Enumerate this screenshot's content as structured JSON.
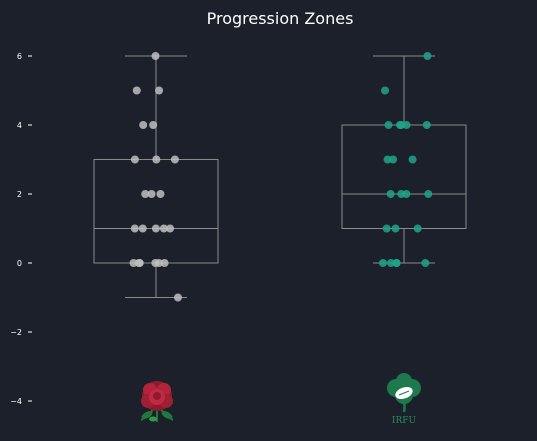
{
  "chart_data": {
    "type": "box",
    "title": "Progression Zones",
    "xlabel": "",
    "ylabel": "",
    "ylim": [
      -4.8,
      6.6
    ],
    "yticks": [
      6,
      4,
      2,
      0,
      -2,
      -4
    ],
    "ytick_labels": [
      "6",
      "4",
      "2",
      "0",
      "−2",
      "−4"
    ],
    "grid": false,
    "series": [
      {
        "team": "England",
        "color": "#c0c0c0",
        "box": {
          "min": -1,
          "q1": 0,
          "median": 1,
          "q3": 3,
          "max": 6
        },
        "points": [
          6,
          5,
          5,
          4,
          4,
          3,
          3,
          3,
          2,
          2,
          2,
          1,
          1,
          1,
          1,
          1,
          0,
          0,
          0,
          0,
          0,
          0,
          -1
        ]
      },
      {
        "team": "Ireland",
        "color": "#1fa58a",
        "box": {
          "min": 0,
          "q1": 1,
          "median": 2,
          "q3": 4,
          "max": 6
        },
        "points": [
          6,
          5,
          4,
          4,
          4,
          4,
          4,
          3,
          3,
          3,
          2,
          2,
          2,
          2,
          1,
          1,
          1,
          0,
          0,
          0,
          0,
          0
        ]
      }
    ],
    "logos": [
      {
        "icon": "england-rose-icon",
        "label": ""
      },
      {
        "icon": "irfu-shamrock-icon",
        "label": "IRFU"
      }
    ]
  }
}
